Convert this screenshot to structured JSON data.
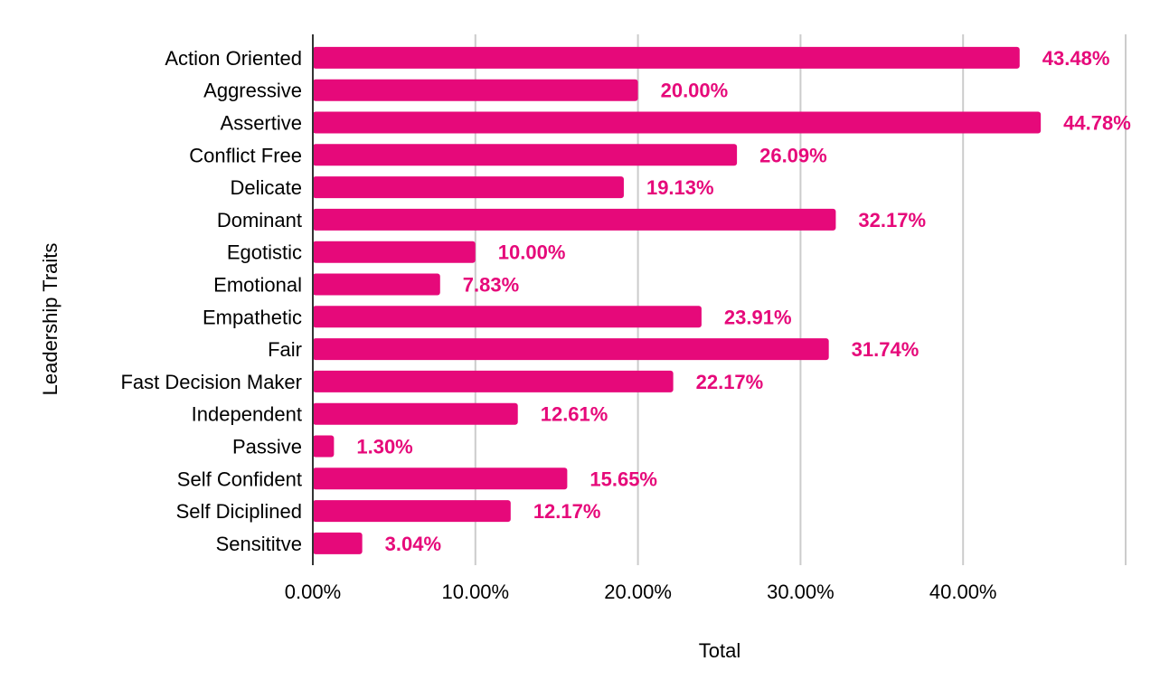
{
  "chart_data": {
    "type": "bar",
    "orientation": "horizontal",
    "title": "",
    "xlabel": "Total",
    "ylabel": "Leadership Traits",
    "xlim": [
      0,
      50
    ],
    "x_ticks": [
      0,
      10,
      20,
      30,
      40
    ],
    "x_tick_labels": [
      "0.00%",
      "10.00%",
      "20.00%",
      "30.00%",
      "40.00%"
    ],
    "grid": true,
    "legend": "none",
    "bar_color": "#e6097a",
    "label_color": "#e6097a",
    "categories": [
      "Action Oriented",
      "Aggressive",
      "Assertive",
      "Conflict Free",
      "Delicate",
      "Dominant",
      "Egotistic",
      "Emotional",
      "Empathetic",
      "Fair",
      "Fast Decision Maker",
      "Independent",
      "Passive",
      "Self Confident",
      "Self Diciplined",
      "Sensititve"
    ],
    "values": [
      43.48,
      20.0,
      44.78,
      26.09,
      19.13,
      32.17,
      10.0,
      7.83,
      23.91,
      31.74,
      22.17,
      12.61,
      1.3,
      15.65,
      12.17,
      3.04
    ],
    "value_labels": [
      "43.48%",
      "20.00%",
      "44.78%",
      "26.09%",
      "19.13%",
      "32.17%",
      "10.00%",
      "7.83%",
      "23.91%",
      "31.74%",
      "22.17%",
      "12.61%",
      "1.30%",
      "15.65%",
      "12.17%",
      "3.04%"
    ]
  }
}
